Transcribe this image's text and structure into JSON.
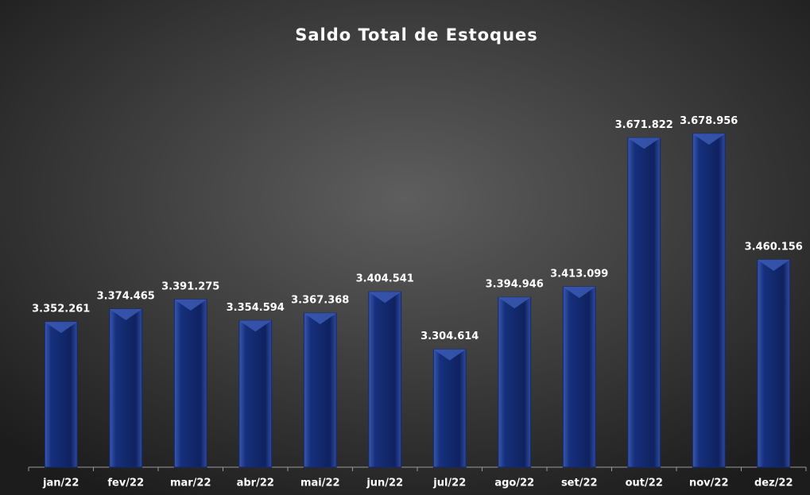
{
  "chart_data": {
    "type": "bar",
    "title": "Saldo Total de Estoques",
    "categories": [
      "jan/22",
      "fev/22",
      "mar/22",
      "abr/22",
      "mai/22",
      "jun/22",
      "jul/22",
      "ago/22",
      "set/22",
      "out/22",
      "nov/22",
      "dez/22"
    ],
    "values": [
      3352261,
      3374465,
      3391275,
      3354594,
      3367368,
      3404541,
      3304614,
      3394946,
      3413099,
      3671822,
      3678956,
      3460156
    ],
    "value_labels": [
      "3.352.261",
      "3.374.465",
      "3.391.275",
      "3.354.594",
      "3.367.368",
      "3.404.541",
      "3.304.614",
      "3.394.946",
      "3.413.099",
      "3.671.822",
      "3.678.956",
      "3.460.156"
    ],
    "color": "#14286e",
    "ylim": [
      3100000,
      3700000
    ]
  }
}
